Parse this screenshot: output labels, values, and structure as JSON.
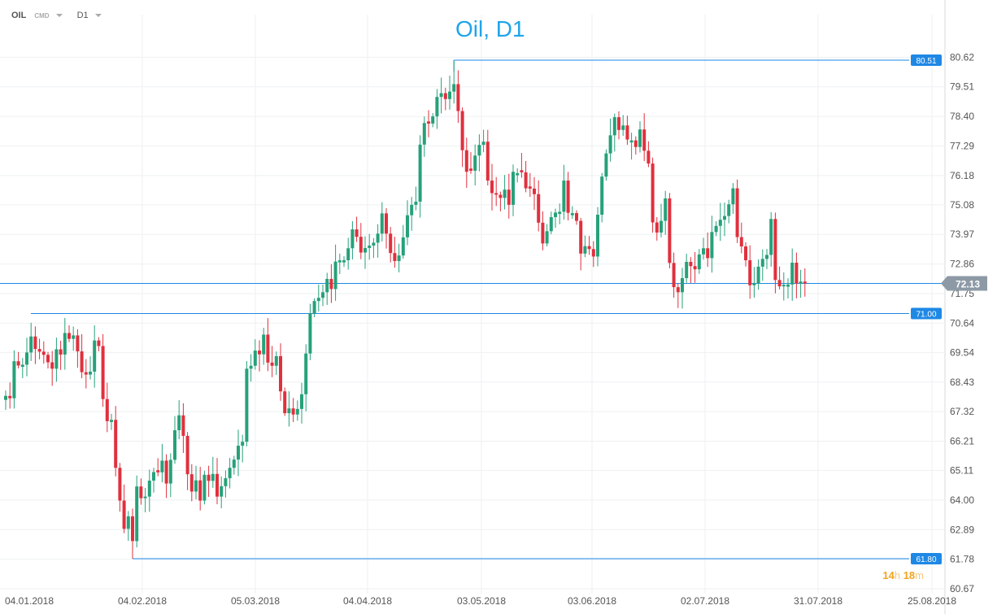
{
  "toolbar": {
    "symbol": "OIL",
    "instrument_type": "CMD",
    "timeframe": "D1"
  },
  "timer": {
    "hours": "14",
    "h": "h",
    "minutes": "18",
    "m": "m"
  },
  "colors": {
    "up": "#26a17a",
    "down": "#e0303e",
    "levels": "#1e88e5",
    "price": "#8d9aa6"
  },
  "chart_data": {
    "type": "candlestick",
    "title": "Oil, D1",
    "ylim": [
      60.67,
      81.73
    ],
    "y_ticks": [
      "80.62",
      "79.51",
      "78.40",
      "77.29",
      "76.18",
      "75.08",
      "73.97",
      "72.86",
      "71.75",
      "70.64",
      "69.54",
      "68.43",
      "67.32",
      "66.21",
      "65.11",
      "64.00",
      "62.89",
      "61.78",
      "60.67"
    ],
    "x_ticks": [
      "04.01.2018",
      "04.02.2018",
      "05.03.2018",
      "04.04.2018",
      "03.05.2018",
      "03.06.2018",
      "02.07.2018",
      "31.07.2018",
      "25.08.2018"
    ],
    "current_price": "72.13",
    "levels": [
      "80.51",
      "71.00",
      "61.80"
    ],
    "closes": [
      67.91,
      67.82,
      69.21,
      69.05,
      69.08,
      69.54,
      70.14,
      69.67,
      69.57,
      69.45,
      69.17,
      68.93,
      69.66,
      69.46,
      70.27,
      70.05,
      70.18,
      69.58,
      68.8,
      68.71,
      68.82,
      69.99,
      69.78,
      67.79,
      66.96,
      67.01,
      65.21,
      63.98,
      62.92,
      63.39,
      62.46,
      64.51,
      64.07,
      64.13,
      64.73,
      65.05,
      65.04,
      65.48,
      64.62,
      65.51,
      66.62,
      67.18,
      66.41,
      64.97,
      64.32,
      64.74,
      63.98,
      64.95,
      64.72,
      64.98,
      64.13,
      64.52,
      64.82,
      65.21,
      65.52,
      66.04,
      66.19,
      68.93,
      69.04,
      69.61,
      69.47,
      70.21,
      69.16,
      69.04,
      69.4,
      68.08,
      67.26,
      67.44,
      67.21,
      67.42,
      67.97,
      69.5,
      71.01,
      71.47,
      71.59,
      71.8,
      72.3,
      71.92,
      72.95,
      73.0,
      73.0,
      73.45,
      74.16,
      73.88,
      73.29,
      73.46,
      73.55,
      73.66,
      74.0,
      74.76,
      74.0,
      73.27,
      72.97,
      73.18,
      73.86,
      74.69,
      75.08,
      75.2,
      77.34,
      78.15,
      78.13,
      78.4,
      79.13,
      79.27,
      79.05,
      79.33,
      79.61,
      78.6,
      77.13,
      76.32,
      76.36,
      76.93,
      77.33,
      77.45,
      75.99,
      75.52,
      75.46,
      75.34,
      75.65,
      75.08,
      76.32,
      76.27,
      76.3,
      75.7,
      75.69,
      75.48,
      74.41,
      73.63,
      74.09,
      74.62,
      74.79,
      74.82,
      75.99,
      74.78,
      74.77,
      74.48,
      73.25,
      73.53,
      73.42,
      73.14,
      74.71,
      76.14,
      77.01,
      77.69,
      78.37,
      77.89,
      78.06,
      77.53,
      77.5,
      77.25,
      77.91,
      77.11,
      76.63,
      74.42,
      74.04,
      74.48,
      75.32,
      72.9,
      71.99,
      71.8,
      72.33,
      72.94,
      72.78,
      72.66,
      73.22,
      73.45,
      73.08,
      74.06,
      74.29,
      74.52,
      74.66,
      75.1,
      75.7,
      73.87,
      73.52,
      73.0,
      72.06,
      72.13,
      72.76,
      73.05,
      73.2,
      74.55,
      72.26,
      72.02,
      72.08,
      72.09,
      72.91,
      72.13,
      72.2,
      72.13
    ]
  }
}
